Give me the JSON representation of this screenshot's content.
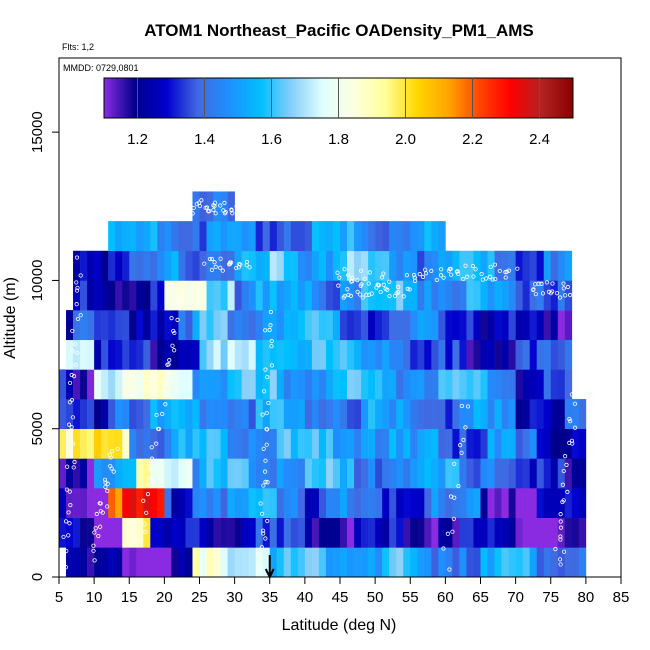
{
  "chart_data": {
    "type": "heatmap",
    "title": "ATOM1 Northeast_Pacific OADensity_PM1_AMS",
    "flights_note": "Flts: 1,2",
    "date_note": "MMDD: 0729,0801",
    "xlabel": "Latitude (deg N)",
    "ylabel": "Altitude (m)",
    "xlim": [
      5,
      85
    ],
    "ylim": [
      0,
      17500
    ],
    "x_ticks": [
      5,
      10,
      15,
      20,
      25,
      30,
      35,
      40,
      45,
      50,
      55,
      60,
      65,
      70,
      75,
      80,
      85
    ],
    "y_ticks": [
      0,
      5000,
      10000,
      15000
    ],
    "colorbar": {
      "range": [
        1.1,
        2.5
      ],
      "ticks": [
        1.2,
        1.4,
        1.6,
        1.8,
        2.0,
        2.2,
        2.4
      ],
      "tick_labels": [
        "1.2",
        "1.4",
        "1.6",
        "1.8",
        "2.0",
        "2.2",
        "2.4"
      ],
      "colors": [
        "#8a2be2",
        "#00008b",
        "#0000cd",
        "#4169e1",
        "#1e90ff",
        "#00bfff",
        "#87cefa",
        "#e0ffff",
        "#ffffe0",
        "#ffff99",
        "#ffd700",
        "#ffa500",
        "#ff4500",
        "#ff0000",
        "#b22222",
        "#8b0000"
      ]
    },
    "marker_latitude": 35,
    "grid": false,
    "series": [
      {
        "values": [
          {
            "y": 500,
            "segments": [
              [
                6,
                24,
                1.2
              ],
              [
                24,
                35,
                1.85
              ],
              [
                35,
                55,
                1.6
              ],
              [
                55,
                80,
                1.55
              ]
            ]
          },
          {
            "y": 1500,
            "segments": [
              [
                5,
                10,
                1.25
              ],
              [
                10,
                14,
                1.15
              ],
              [
                14,
                18,
                2.05
              ],
              [
                18,
                24,
                1.3
              ],
              [
                24,
                45,
                1.35
              ],
              [
                45,
                70,
                1.3
              ],
              [
                70,
                80,
                1.2
              ]
            ]
          },
          {
            "y": 2500,
            "segments": [
              [
                5,
                12,
                1.2
              ],
              [
                12,
                20,
                2.3
              ],
              [
                20,
                24,
                1.4
              ],
              [
                24,
                40,
                1.55
              ],
              [
                40,
                65,
                1.45
              ],
              [
                65,
                80,
                1.25
              ]
            ]
          },
          {
            "y": 3500,
            "segments": [
              [
                5,
                10,
                1.3
              ],
              [
                10,
                16,
                1.5
              ],
              [
                16,
                24,
                1.9
              ],
              [
                24,
                45,
                1.6
              ],
              [
                45,
                70,
                1.55
              ],
              [
                70,
                80,
                1.3
              ]
            ]
          },
          {
            "y": 4500,
            "segments": [
              [
                5,
                8,
                2.05
              ],
              [
                8,
                15,
                2.0
              ],
              [
                15,
                24,
                1.55
              ],
              [
                24,
                50,
                1.6
              ],
              [
                50,
                70,
                1.5
              ],
              [
                70,
                80,
                1.4
              ]
            ]
          },
          {
            "y": 5500,
            "segments": [
              [
                5,
                12,
                1.3
              ],
              [
                12,
                25,
                1.55
              ],
              [
                25,
                50,
                1.55
              ],
              [
                50,
                70,
                1.5
              ],
              [
                70,
                80,
                1.4
              ]
            ]
          },
          {
            "y": 6500,
            "segments": [
              [
                5,
                10,
                1.3
              ],
              [
                10,
                24,
                1.85
              ],
              [
                24,
                50,
                1.6
              ],
              [
                50,
                70,
                1.6
              ],
              [
                70,
                78,
                1.35
              ]
            ]
          },
          {
            "y": 7500,
            "segments": [
              [
                6,
                10,
                1.85
              ],
              [
                10,
                25,
                1.35
              ],
              [
                25,
                40,
                1.7
              ],
              [
                40,
                55,
                1.6
              ],
              [
                55,
                78,
                1.35
              ]
            ]
          },
          {
            "y": 8500,
            "segments": [
              [
                6,
                24,
                1.4
              ],
              [
                24,
                45,
                1.6
              ],
              [
                45,
                65,
                1.45
              ],
              [
                65,
                78,
                1.3
              ]
            ]
          },
          {
            "y": 9500,
            "segments": [
              [
                7,
                20,
                1.3
              ],
              [
                20,
                30,
                1.8
              ],
              [
                30,
                45,
                1.55
              ],
              [
                45,
                65,
                1.6
              ],
              [
                65,
                78,
                1.5
              ]
            ]
          },
          {
            "y": 10500,
            "segments": [
              [
                7,
                20,
                1.4
              ],
              [
                20,
                35,
                1.55
              ],
              [
                35,
                55,
                1.65
              ],
              [
                55,
                70,
                1.55
              ],
              [
                70,
                78,
                1.45
              ]
            ]
          },
          {
            "y": 11500,
            "segments": [
              [
                12,
                25,
                1.55
              ],
              [
                25,
                40,
                1.5
              ],
              [
                40,
                60,
                1.55
              ]
            ]
          },
          {
            "y": 12500,
            "segments": [
              [
                24,
                30,
                1.4
              ]
            ]
          }
        ]
      }
    ]
  }
}
